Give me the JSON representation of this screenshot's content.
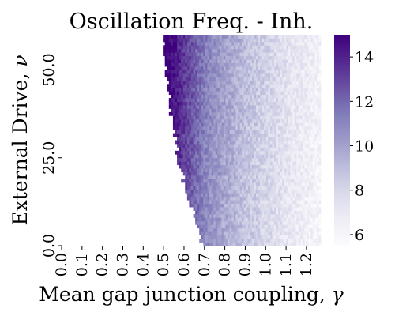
{
  "chart_data": {
    "type": "heatmap",
    "title": "Oscillation Freq. - Inh.",
    "xlabel": "Mean gap junction coupling, γ",
    "ylabel": "External Drive, ν",
    "x": [
      0.0,
      0.1,
      0.2,
      0.3,
      0.4,
      0.5,
      0.6,
      0.7,
      0.8,
      0.9,
      1.0,
      1.1,
      1.2
    ],
    "x_tick_labels": [
      "0.0",
      "0.1",
      "0.2",
      "0.3",
      "0.4",
      "0.5",
      "0.6",
      "0.7",
      "0.8",
      "0.9",
      "1.0",
      "1.1",
      "1.2"
    ],
    "y_range": [
      0.0,
      60.0
    ],
    "y_ticks": [
      0.0,
      25.0,
      50.0
    ],
    "y_tick_labels": [
      "0.0",
      "25.0",
      "50.0"
    ],
    "x_range": [
      0.0,
      1.27
    ],
    "colorbar": {
      "min": 5.5,
      "max": 15.0,
      "ticks": [
        6,
        8,
        10,
        12,
        14
      ],
      "tick_labels": [
        "6",
        "8",
        "10",
        "12",
        "14"
      ],
      "colormap": "Purples",
      "color_low": "#fcfbfd",
      "color_high": "#3f007d"
    },
    "frequency_profile_by_gamma": {
      "gamma": [
        0.5,
        0.55,
        0.6,
        0.65,
        0.7,
        0.75,
        0.8,
        0.85,
        0.9,
        0.95,
        1.0,
        1.05,
        1.1,
        1.15,
        1.2,
        1.27
      ],
      "frequency_hz": [
        15.0,
        14.2,
        13.0,
        12.0,
        11.0,
        10.3,
        9.7,
        9.2,
        8.7,
        8.3,
        7.9,
        7.5,
        7.1,
        6.8,
        6.4,
        6.0
      ]
    },
    "onset_boundary": {
      "drive": [
        0.0,
        5.0,
        10.0,
        15.0,
        20.0,
        25.0,
        30.0,
        35.0,
        40.0,
        45.0,
        50.0,
        55.0,
        60.0
      ],
      "gamma_onset": [
        0.69,
        0.67,
        0.64,
        0.61,
        0.59,
        0.57,
        0.555,
        0.54,
        0.53,
        0.52,
        0.51,
        0.505,
        0.5
      ]
    },
    "grid": false,
    "legend": "colorbar-right"
  }
}
